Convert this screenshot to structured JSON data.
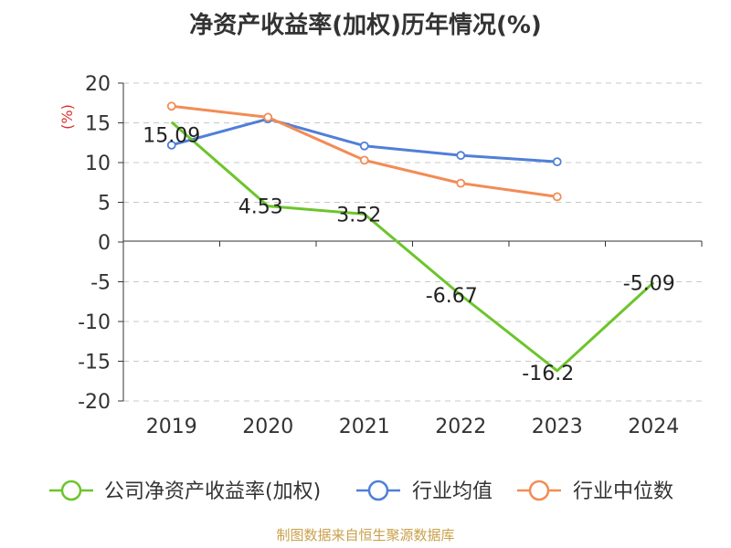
{
  "chart_data": {
    "type": "line",
    "title": "净资产收益率(加权)历年情况(%)",
    "ylabel": "(%)",
    "ylim": [
      -20,
      20
    ],
    "yticks": [
      "20",
      "15",
      "10",
      "5",
      "0",
      "-5",
      "-10",
      "-15",
      "-20"
    ],
    "categories": [
      "2019",
      "2020",
      "2021",
      "2022",
      "2023",
      "2024"
    ],
    "series": [
      {
        "name": "公司净资产收益率(加权)",
        "color": "#6cc52b",
        "values": [
          15.09,
          4.53,
          3.52,
          -6.67,
          -16.2,
          -5.09
        ],
        "labels": [
          "15.09",
          "4.53",
          "3.52",
          "-6.67",
          "-16.2",
          "-5.09"
        ]
      },
      {
        "name": "行业均值",
        "color": "#4f7fd8",
        "values": [
          12.2,
          15.5,
          12.1,
          10.9,
          10.1,
          null
        ]
      },
      {
        "name": "行业中位数",
        "color": "#f28c55",
        "values": [
          17.1,
          15.7,
          10.3,
          7.4,
          5.7,
          null
        ]
      }
    ],
    "gridlines": "dashed"
  },
  "footer": {
    "source": "制图数据来自恒生聚源数据库"
  }
}
